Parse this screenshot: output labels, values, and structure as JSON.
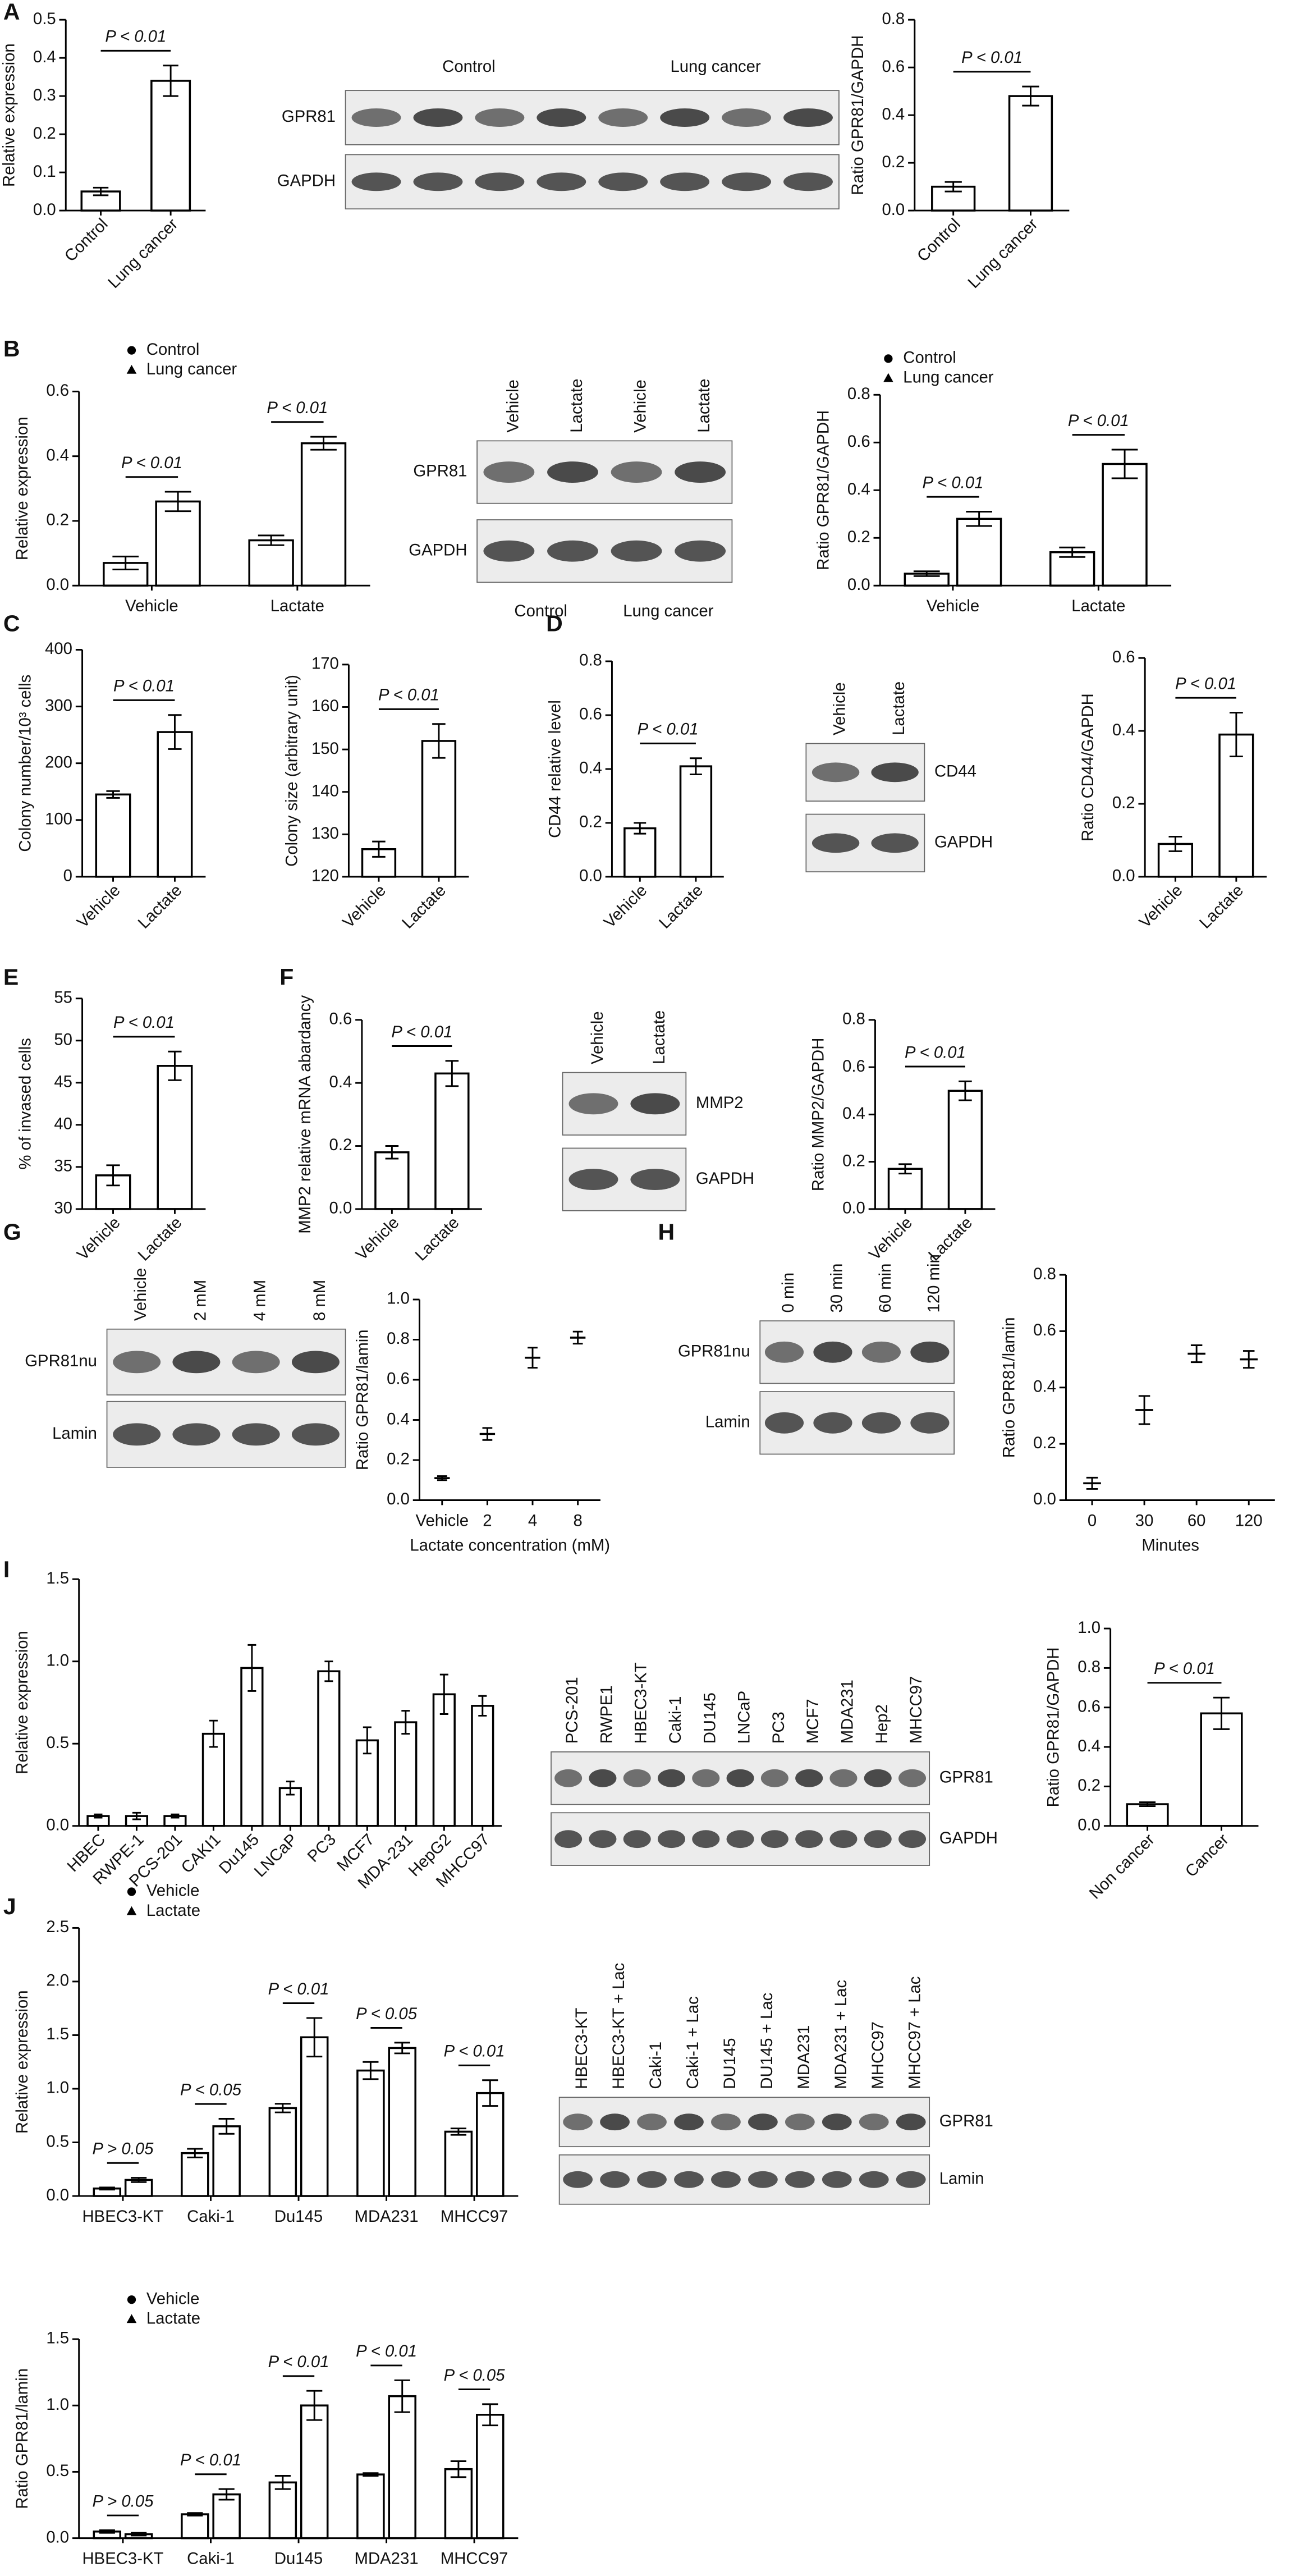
{
  "panel_labels": [
    "A",
    "B",
    "C",
    "D",
    "E",
    "F",
    "G",
    "H",
    "I",
    "J"
  ],
  "chart_data": [
    {
      "type": "bar",
      "ylabel": "Relative expression",
      "categories": [
        "Control",
        "Lung cancer"
      ],
      "values": [
        0.05,
        0.34
      ],
      "errors": [
        0.01,
        0.04
      ],
      "ylim": [
        0,
        0.5
      ],
      "yticks": [
        {
          "value": 0,
          "label": "0.0"
        },
        0.1,
        0.2,
        0.3,
        0.4,
        0.5
      ],
      "annotations": [
        "P < 0.01"
      ],
      "color": "#000000"
    },
    {
      "type": "bar",
      "ylabel": "Ratio GPR81/GAPDH",
      "categories": [
        "Control",
        "Lung cancer"
      ],
      "values": [
        0.1,
        0.48
      ],
      "errors": [
        0.02,
        0.04
      ],
      "ylim": [
        0,
        0.8
      ],
      "yticks": [
        {
          "value": 0,
          "label": "0.0"
        },
        0.2,
        0.4,
        0.6,
        0.8
      ],
      "annotations": [
        "P < 0.01"
      ],
      "color": "#000000"
    },
    {
      "type": "bar",
      "ylabel": "Relative expression",
      "categories": [
        "Vehicle",
        "Lactate"
      ],
      "series": [
        {
          "name": "Control",
          "marker": "circle",
          "color": "#000000",
          "values": [
            0.07,
            0.14
          ],
          "errors": [
            0.02,
            0.015
          ]
        },
        {
          "name": "Lung cancer",
          "marker": "triangle",
          "color": "#000000",
          "values": [
            0.26,
            0.44
          ],
          "errors": [
            0.03,
            0.02
          ]
        }
      ],
      "ylim": [
        0,
        0.6
      ],
      "yticks": [
        {
          "value": 0,
          "label": "0.0"
        },
        0.2,
        0.4,
        0.6
      ],
      "annotations": [
        "P < 0.01",
        "P < 0.01"
      ]
    },
    {
      "type": "bar",
      "ylabel": "Ratio GPR81/GAPDH",
      "categories": [
        "Vehicle",
        "Lactate"
      ],
      "series": [
        {
          "name": "Control",
          "marker": "circle",
          "color": "#000000",
          "values": [
            0.05,
            0.14
          ],
          "errors": [
            0.01,
            0.02
          ]
        },
        {
          "name": "Lung cancer",
          "marker": "triangle",
          "color": "#000000",
          "values": [
            0.28,
            0.51
          ],
          "errors": [
            0.03,
            0.06
          ]
        }
      ],
      "ylim": [
        0,
        0.8
      ],
      "yticks": [
        {
          "value": 0,
          "label": "0.0"
        },
        0.2,
        0.4,
        0.6,
        0.8
      ],
      "annotations": [
        "P < 0.01",
        "P < 0.01"
      ]
    },
    {
      "type": "bar",
      "ylabel": "Colony number/10³ cells",
      "categories": [
        "Vehicle",
        "Lactate"
      ],
      "values": [
        145,
        255
      ],
      "errors": [
        6,
        30
      ],
      "ylim": [
        0,
        400
      ],
      "yticks": [
        0,
        100,
        200,
        300,
        400
      ],
      "annotations": [
        "P < 0.01"
      ],
      "color": "#000000"
    },
    {
      "type": "bar",
      "ylabel": "Colony size (arbitrary unit)",
      "categories": [
        "Vehicle",
        "Lactate"
      ],
      "values": [
        126.5,
        152
      ],
      "errors": [
        1.8,
        4
      ],
      "ylim": [
        120,
        170
      ],
      "yticks": [
        120,
        130,
        140,
        150,
        160,
        170
      ],
      "annotations": [
        "P < 0.01"
      ],
      "color": "#000000"
    },
    {
      "type": "bar",
      "ylabel": "CD44 relative level",
      "categories": [
        "Vehicle",
        "Lactate"
      ],
      "values": [
        0.18,
        0.41
      ],
      "errors": [
        0.02,
        0.03
      ],
      "ylim": [
        0,
        0.8
      ],
      "yticks": [
        {
          "value": 0,
          "label": "0.0"
        },
        0.2,
        0.4,
        0.6,
        0.8
      ],
      "annotations": [
        "P < 0.01"
      ],
      "color": "#000000"
    },
    {
      "type": "bar",
      "ylabel": "Ratio CD44/GAPDH",
      "categories": [
        "Vehicle",
        "Lactate"
      ],
      "values": [
        0.09,
        0.39
      ],
      "errors": [
        0.02,
        0.06
      ],
      "ylim": [
        0,
        0.6
      ],
      "yticks": [
        {
          "value": 0,
          "label": "0.0"
        },
        0.2,
        0.4,
        0.6
      ],
      "annotations": [
        "P < 0.01"
      ],
      "color": "#000000"
    },
    {
      "type": "bar",
      "ylabel": "% of invased cells",
      "categories": [
        "Vehicle",
        "Lactate"
      ],
      "values": [
        34,
        47
      ],
      "errors": [
        1.2,
        1.7
      ],
      "ylim": [
        30,
        55
      ],
      "yticks": [
        30,
        35,
        40,
        45,
        50,
        55
      ],
      "annotations": [
        "P < 0.01"
      ],
      "color": "#000000"
    },
    {
      "type": "bar",
      "ylabel": "MMP2 relative mRNA abardancy",
      "categories": [
        "Vehicle",
        "Lactate"
      ],
      "values": [
        0.18,
        0.43
      ],
      "errors": [
        0.02,
        0.04
      ],
      "ylim": [
        0,
        0.6
      ],
      "yticks": [
        {
          "value": 0,
          "label": "0.0"
        },
        0.2,
        0.4,
        0.6
      ],
      "annotations": [
        "P < 0.01"
      ],
      "color": "#000000"
    },
    {
      "type": "bar",
      "ylabel": "Ratio MMP2/GAPDH",
      "categories": [
        "Vehicle",
        "Lactate"
      ],
      "values": [
        0.17,
        0.5
      ],
      "errors": [
        0.02,
        0.04
      ],
      "ylim": [
        0,
        0.8
      ],
      "yticks": [
        {
          "value": 0,
          "label": "0.0"
        },
        0.2,
        0.4,
        0.6,
        0.8
      ],
      "annotations": [
        "P < 0.01"
      ],
      "color": "#000000"
    },
    {
      "type": "dot",
      "ylabel": "Ratio GPR81/lamin",
      "xlabel": "Lactate concentration (mM)",
      "categories": [
        "Vehicle",
        "2",
        "4",
        "8"
      ],
      "values": [
        0.11,
        0.33,
        0.71,
        0.81
      ],
      "errors": [
        0.01,
        0.03,
        0.05,
        0.03
      ],
      "ylim": [
        0,
        1
      ],
      "yticks": [
        {
          "value": 0,
          "label": "0.0"
        },
        0.2,
        0.4,
        0.6,
        0.8,
        {
          "value": 1,
          "label": "1.0"
        }
      ],
      "color": "#000000"
    },
    {
      "type": "dot",
      "ylabel": "Ratio GPR81/lamin",
      "xlabel": "Minutes",
      "categories": [
        "0",
        "30",
        "60",
        "120"
      ],
      "values": [
        0.06,
        0.32,
        0.52,
        0.5
      ],
      "errors": [
        0.02,
        0.05,
        0.03,
        0.03
      ],
      "ylim": [
        0,
        0.8
      ],
      "yticks": [
        {
          "value": 0,
          "label": "0.0"
        },
        0.2,
        0.4,
        0.6,
        0.8
      ],
      "color": "#000000"
    },
    {
      "type": "bar",
      "ylabel": "Relative expression",
      "categories": [
        "HBEC",
        "RWPE-1",
        "PCS-201",
        "CAKI1",
        "Du145",
        "LNCaP",
        "PC3",
        "MCF7",
        "MDA-231",
        "HepG2",
        "MHCC97"
      ],
      "values": [
        0.06,
        0.06,
        0.06,
        0.56,
        0.96,
        0.23,
        0.94,
        0.52,
        0.63,
        0.8,
        0.73
      ],
      "errors": [
        0.01,
        0.02,
        0.01,
        0.08,
        0.14,
        0.04,
        0.06,
        0.08,
        0.07,
        0.12,
        0.06
      ],
      "ylim": [
        0,
        1.5
      ],
      "yticks": [
        {
          "value": 0,
          "label": "0.0"
        },
        0.5,
        {
          "value": 1,
          "label": "1.0"
        },
        1.5
      ],
      "color": "#000000"
    },
    {
      "type": "bar",
      "ylabel": "Ratio GPR81/GAPDH",
      "categories": [
        "Non cancer",
        "Cancer"
      ],
      "values": [
        0.11,
        0.57
      ],
      "errors": [
        0.01,
        0.08
      ],
      "ylim": [
        0,
        1
      ],
      "yticks": [
        {
          "value": 0,
          "label": "0.0"
        },
        0.2,
        0.4,
        0.6,
        0.8,
        {
          "value": 1,
          "label": "1.0"
        }
      ],
      "annotations": [
        "P < 0.01"
      ],
      "color": "#000000"
    },
    {
      "type": "bar",
      "ylabel": "Relative expression",
      "categories": [
        "HBEC3-KT",
        "Caki-1",
        "Du145",
        "MDA231",
        "MHCC97"
      ],
      "series": [
        {
          "name": "Vehicle",
          "marker": "circle",
          "color": "#000000",
          "values": [
            0.07,
            0.4,
            0.82,
            1.17,
            0.6
          ],
          "errors": [
            0.01,
            0.04,
            0.04,
            0.08,
            0.03
          ]
        },
        {
          "name": "Lactate",
          "marker": "triangle",
          "color": "#000000",
          "values": [
            0.15,
            0.65,
            1.48,
            1.38,
            0.96
          ],
          "errors": [
            0.02,
            0.07,
            0.18,
            0.05,
            0.12
          ]
        }
      ],
      "ylim": [
        0,
        2.5
      ],
      "yticks": [
        {
          "value": 0,
          "label": "0.0"
        },
        0.5,
        {
          "value": 1,
          "label": "1.0"
        },
        1.5,
        {
          "value": 2,
          "label": "2.0"
        },
        2.5
      ],
      "annotations": [
        "P > 0.05",
        "P < 0.05",
        "P < 0.01",
        "P < 0.05",
        "P < 0.01"
      ]
    },
    {
      "type": "bar",
      "ylabel": "Ratio GPR81/lamin",
      "categories": [
        "HBEC3-KT",
        "Caki-1",
        "Du145",
        "MDA231",
        "MHCC97"
      ],
      "series": [
        {
          "name": "Vehicle",
          "marker": "circle",
          "color": "#000000",
          "values": [
            0.05,
            0.18,
            0.42,
            0.48,
            0.52
          ],
          "errors": [
            0.01,
            0.01,
            0.05,
            0.01,
            0.06
          ]
        },
        {
          "name": "Lactate",
          "marker": "triangle",
          "color": "#000000",
          "values": [
            0.03,
            0.33,
            1.0,
            1.07,
            0.93
          ],
          "errors": [
            0.01,
            0.04,
            0.11,
            0.12,
            0.08
          ]
        }
      ],
      "ylim": [
        0,
        1.5
      ],
      "yticks": [
        {
          "value": 0,
          "label": "0.0"
        },
        0.5,
        {
          "value": 1,
          "label": "1.0"
        },
        1.5
      ],
      "annotations": [
        "P > 0.05",
        "P < 0.01",
        "P < 0.01",
        "P < 0.01",
        "P < 0.05"
      ]
    }
  ],
  "blots": [
    {
      "rows": [
        "GPR81",
        "GAPDH"
      ],
      "groups": [
        "Control",
        "Lung cancer"
      ]
    },
    {
      "rows": [
        "GPR81",
        "GAPDH"
      ],
      "lanes": [
        "Vehicle",
        "Lactate",
        "Vehicle",
        "Lactate"
      ],
      "groups": [
        "Control",
        "Lung cancer"
      ]
    },
    {
      "rows": [
        "CD44",
        "GAPDH"
      ],
      "lanes": [
        "Vehicle",
        "Lactate"
      ]
    },
    {
      "rows": [
        "MMP2",
        "GAPDH"
      ],
      "lanes": [
        "Vehicle",
        "Lactate"
      ]
    },
    {
      "rows": [
        "GPR81nu",
        "Lamin"
      ],
      "lanes": [
        "Vehicle",
        "2 mM",
        "4 mM",
        "8 mM"
      ]
    },
    {
      "rows": [
        "GPR81nu",
        "Lamin"
      ],
      "lanes": [
        "0 min",
        "30 min",
        "60 min",
        "120 min"
      ]
    },
    {
      "rows": [
        "GPR81",
        "GAPDH"
      ],
      "lanes": [
        "PCS-201",
        "RWPE1",
        "HBEC3-KT",
        "Caki-1",
        "DU145",
        "LNCaP",
        "PC3",
        "MCF7",
        "MDA231",
        "Hep2",
        "MHCC97"
      ]
    },
    {
      "rows": [
        "GPR81",
        "Lamin"
      ],
      "lanes": [
        "HBEC3-KT",
        "HBEC3-KT + Lac",
        "Caki-1",
        "Caki-1 + Lac",
        "DU145",
        "DU145 + Lac",
        "MDA231",
        "MDA231 + Lac",
        "MHCC97",
        "MHCC97 + Lac"
      ]
    }
  ]
}
